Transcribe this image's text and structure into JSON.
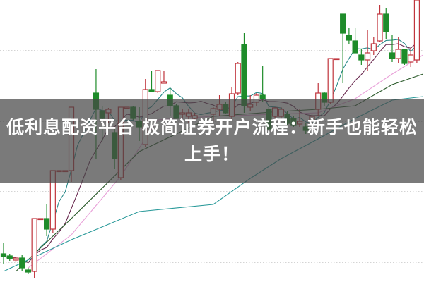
{
  "headline": {
    "line1": "低利息配资平台 极简证券开户流程：新手也能轻松",
    "line2": "上手！"
  },
  "chart_data": {
    "type": "candlestick",
    "title": "",
    "xlabel": "",
    "ylabel": "",
    "ylim": [
      0,
      400
    ],
    "grid": "horizontal-dotted",
    "gridlines": [
      328,
      228,
      128,
      28
    ],
    "colors": {
      "up": "#c0343c",
      "down": "#1e8c2a",
      "ma_short": "#2a8a8a",
      "ma_mid": "#6a2a50",
      "ma_pink": "#e8a0d8",
      "ma_green": "#2a5a2a",
      "ma_teal": "#2a9a9a",
      "grid": "#bbbbbb"
    },
    "candles": [
      [
        0,
        40,
        55,
        25,
        36
      ],
      [
        1,
        37,
        40,
        30,
        33
      ],
      [
        2,
        31,
        36,
        28,
        34
      ],
      [
        3,
        34,
        38,
        15,
        20
      ],
      [
        4,
        17,
        20,
        12,
        14
      ],
      [
        5,
        15,
        90,
        5,
        90
      ],
      [
        6,
        90,
        90,
        90,
        90
      ],
      [
        7,
        90,
        110,
        65,
        75
      ],
      [
        8,
        75,
        158,
        70,
        158
      ],
      [
        9,
        158,
        158,
        158,
        158
      ],
      [
        10,
        158,
        158,
        158,
        158
      ],
      [
        11,
        158,
        248,
        142,
        248
      ],
      [
        15,
        268,
        302,
        175,
        245
      ],
      [
        16,
        243,
        250,
        200,
        232
      ],
      [
        17,
        240,
        247,
        225,
        245
      ],
      [
        18,
        212,
        220,
        160,
        175
      ],
      [
        19,
        148,
        248,
        145,
        248
      ],
      [
        20,
        248,
        248,
        248,
        248
      ],
      [
        21,
        248,
        250,
        230,
        232
      ],
      [
        22,
        228,
        248,
        200,
        220
      ],
      [
        23,
        195,
        288,
        192,
        273
      ],
      [
        24,
        273,
        300,
        270,
        270
      ],
      [
        25,
        270,
        300,
        268,
        300
      ],
      [
        26,
        282,
        300,
        282,
        284
      ],
      [
        27,
        265,
        275,
        235,
        250
      ],
      [
        28,
        250,
        252,
        232,
        232
      ],
      [
        29,
        238,
        245,
        232,
        240
      ],
      [
        30,
        235,
        245,
        225,
        240
      ],
      [
        31,
        232,
        240,
        228,
        236
      ],
      [
        34,
        238,
        248,
        228,
        246
      ],
      [
        35,
        245,
        265,
        235,
        252
      ],
      [
        36,
        252,
        255,
        238,
        240
      ],
      [
        37,
        235,
        277,
        230,
        267
      ],
      [
        38,
        268,
        312,
        265,
        310
      ],
      [
        39,
        337,
        353,
        240,
        250
      ],
      [
        40,
        248,
        265,
        242,
        252
      ],
      [
        41,
        255,
        268,
        250,
        265
      ],
      [
        42,
        265,
        307,
        255,
        260
      ],
      [
        43,
        245,
        248,
        215,
        217
      ],
      [
        44,
        235,
        248,
        230,
        247
      ],
      [
        45,
        235,
        248,
        228,
        245
      ],
      [
        46,
        238,
        242,
        222,
        225
      ],
      [
        47,
        232,
        235,
        220,
        222
      ],
      [
        48,
        224,
        245,
        220,
        228
      ],
      [
        49,
        220,
        225,
        210,
        215
      ],
      [
        50,
        228,
        238,
        222,
        235
      ],
      [
        51,
        245,
        282,
        235,
        268
      ],
      [
        52,
        268,
        270,
        250,
        255
      ],
      [
        53,
        255,
        317,
        252,
        317
      ],
      [
        54,
        317,
        317,
        317,
        317
      ],
      [
        55,
        380,
        380,
        282,
        353
      ],
      [
        56,
        350,
        360,
        338,
        343
      ],
      [
        57,
        342,
        360,
        325,
        325
      ],
      [
        58,
        322,
        330,
        308,
        315
      ],
      [
        59,
        315,
        357,
        300,
        325
      ],
      [
        60,
        328,
        347,
        322,
        338
      ],
      [
        61,
        342,
        393,
        340,
        380
      ],
      [
        62,
        380,
        388,
        345,
        355
      ],
      [
        63,
        325,
        350,
        312,
        317
      ],
      [
        64,
        317,
        348,
        310,
        330
      ],
      [
        65,
        330,
        330,
        308,
        310
      ],
      [
        66,
        312,
        332,
        305,
        322
      ],
      [
        67,
        315,
        400,
        310,
        400
      ]
    ],
    "moving_averages": [
      {
        "kind": "short",
        "color_key": "ma_short",
        "period": 5
      },
      {
        "kind": "mid",
        "color_key": "ma_mid",
        "period": 10
      },
      {
        "kind": "pink",
        "color_key": "ma_pink",
        "points": [
          [
            4,
            20
          ],
          [
            11,
            67
          ],
          [
            19,
            150
          ],
          [
            25,
            230
          ],
          [
            34,
            235
          ],
          [
            51,
            240
          ],
          [
            57,
            260
          ],
          [
            63,
            295
          ],
          [
            68,
            322
          ]
        ]
      },
      {
        "kind": "green",
        "color_key": "ma_green",
        "points": [
          [
            2,
            15
          ],
          [
            11,
            90
          ],
          [
            22,
            185
          ],
          [
            28,
            210
          ],
          [
            34,
            235
          ],
          [
            45,
            242
          ],
          [
            51,
            245
          ],
          [
            57,
            250
          ],
          [
            63,
            280
          ],
          [
            68,
            295
          ]
        ]
      },
      {
        "kind": "teal",
        "color_key": "ma_teal",
        "points": [
          [
            0,
            15
          ],
          [
            11,
            60
          ],
          [
            22,
            100
          ],
          [
            34,
            110
          ],
          [
            40,
            147
          ],
          [
            45,
            175
          ],
          [
            51,
            203
          ],
          [
            57,
            232
          ],
          [
            63,
            258
          ],
          [
            68,
            263
          ]
        ]
      }
    ]
  }
}
